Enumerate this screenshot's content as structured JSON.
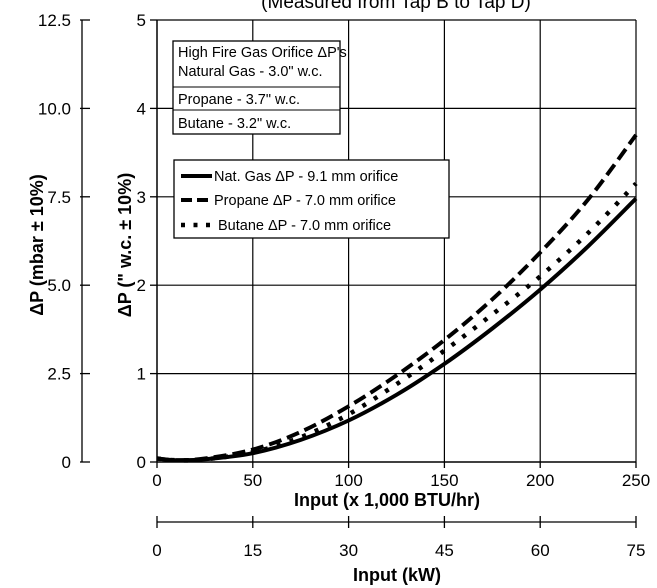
{
  "chart_data": {
    "type": "line",
    "title": "(Measured from Tap B to Tap D)",
    "xlabel": "Input (x 1,000 BTU/hr)",
    "xlabel2": "Input (kW)",
    "ylabel": "ΔP (\" w.c. ± 10%)",
    "ylabel2": "ΔP (mbar ± 10%)",
    "xlim": [
      0,
      250
    ],
    "ylim": [
      0,
      5
    ],
    "xticks": [
      "0",
      "50",
      "100",
      "150",
      "200",
      "250"
    ],
    "xticks2": [
      "0",
      "15",
      "30",
      "45",
      "60",
      "75"
    ],
    "yticks": [
      "0",
      "1",
      "2",
      "3",
      "4",
      "5"
    ],
    "yticks2": [
      "0",
      "2.5",
      "5.0",
      "7.5",
      "10.0",
      "12.5"
    ],
    "grid": true,
    "infobox": [
      "High Fire Gas Orifice ΔP's",
      "Natural Gas - 3.0\" w.c.",
      "Propane - 3.7\" w.c.",
      "Butane - 3.2\" w.c."
    ],
    "series": [
      {
        "name": "Nat. Gas ΔP - 9.1 mm orifice",
        "style": "solid",
        "x": [
          0,
          10,
          25,
          50,
          75,
          100,
          125,
          150,
          175,
          200,
          225,
          250
        ],
        "y": [
          0.04,
          0.02,
          0.03,
          0.1,
          0.25,
          0.47,
          0.76,
          1.11,
          1.51,
          1.95,
          2.44,
          2.98
        ]
      },
      {
        "name": "Propane ΔP - 7.0 mm orifice",
        "style": "dashed",
        "x": [
          0,
          10,
          25,
          50,
          75,
          100,
          125,
          150,
          175,
          200,
          225,
          250
        ],
        "y": [
          0.04,
          0.02,
          0.04,
          0.14,
          0.34,
          0.63,
          0.98,
          1.38,
          1.84,
          2.37,
          2.97,
          3.7
        ]
      },
      {
        "name": "Butane ΔP - 7.0 mm orifice",
        "style": "dotted",
        "x": [
          0,
          10,
          25,
          50,
          75,
          100,
          125,
          150,
          175,
          200,
          225,
          250
        ],
        "y": [
          0.04,
          0.02,
          0.03,
          0.11,
          0.28,
          0.54,
          0.88,
          1.26,
          1.67,
          2.1,
          2.59,
          3.15
        ]
      }
    ]
  }
}
